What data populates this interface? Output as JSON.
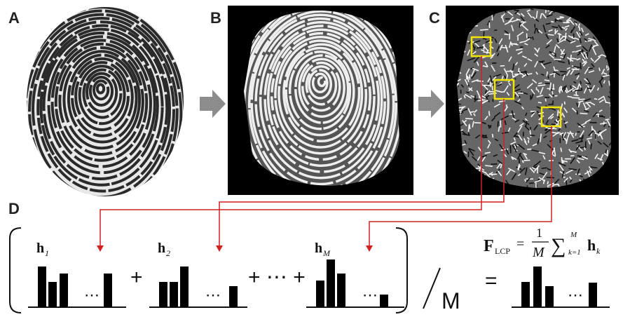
{
  "panels": [
    {
      "label": "A"
    },
    {
      "label": "B"
    },
    {
      "label": "C"
    },
    {
      "label": "D"
    }
  ],
  "histograms": [
    {
      "label": "h",
      "subscript": "1"
    },
    {
      "label": "h",
      "subscript": "2"
    },
    {
      "label": "h",
      "subscript": "M"
    }
  ],
  "ellipsis": "⋯",
  "operators": [
    "+",
    "+ ⋯ +"
  ],
  "divisor": "M",
  "equals": "=",
  "formula": {
    "lhs": "F",
    "lhs_subscript": "LCP",
    "equals": "=",
    "numerator": "1",
    "denominator": "M",
    "sum": "∑",
    "sum_lower": "k=1",
    "sum_upper": "M",
    "term": "h",
    "term_subscript": "k"
  }
}
